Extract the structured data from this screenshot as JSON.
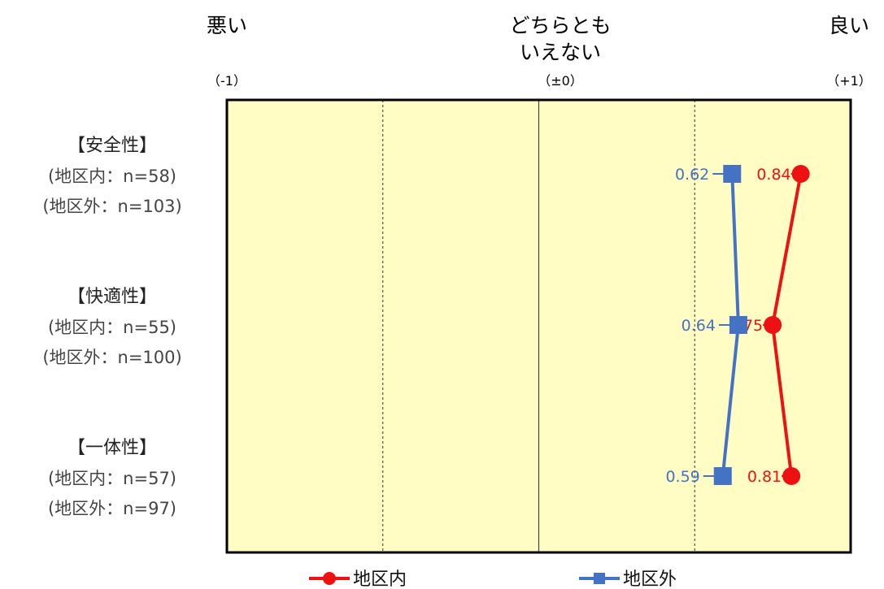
{
  "chart_data": {
    "type": "line",
    "orientation": "horizontal",
    "xlim": [
      -1,
      1
    ],
    "grid": "dashed at -0.5 and 0.5, solid at 0",
    "legend_position": "bottom",
    "axis_headers": [
      {
        "lines": [
          "悪い"
        ],
        "scale": "（-1）",
        "x": -1
      },
      {
        "lines": [
          "どちらとも",
          "いえない"
        ],
        "scale": "（±0）",
        "x": 0
      },
      {
        "lines": [
          "良い"
        ],
        "scale": "（+1）",
        "x": 1
      }
    ],
    "categories": [
      {
        "title": "【安全性】",
        "lines": [
          "(地区内：n=58)",
          "(地区外：n=103)"
        ]
      },
      {
        "title": "【快適性】",
        "lines": [
          "(地区内：n=55)",
          "(地区外：n=100)"
        ]
      },
      {
        "title": "【一体性】",
        "lines": [
          "(地区内：n=57)",
          "(地区外：n=97)"
        ]
      }
    ],
    "series": [
      {
        "name": "地区内",
        "color": "#ee1111",
        "marker": "circle",
        "values": [
          0.84,
          0.75,
          0.81
        ],
        "labels": [
          "0.84",
          "0.75",
          "0.81"
        ],
        "label_side": "left-of-marker-overlap"
      },
      {
        "name": "地区外",
        "color": "#4472c4",
        "marker": "square",
        "values": [
          0.62,
          0.64,
          0.59
        ],
        "labels": [
          "0.62",
          "0.64",
          "0.59"
        ],
        "label_side": "left"
      }
    ]
  },
  "colors": {
    "plot_background": "#fffdc4",
    "frame": "#000000"
  }
}
